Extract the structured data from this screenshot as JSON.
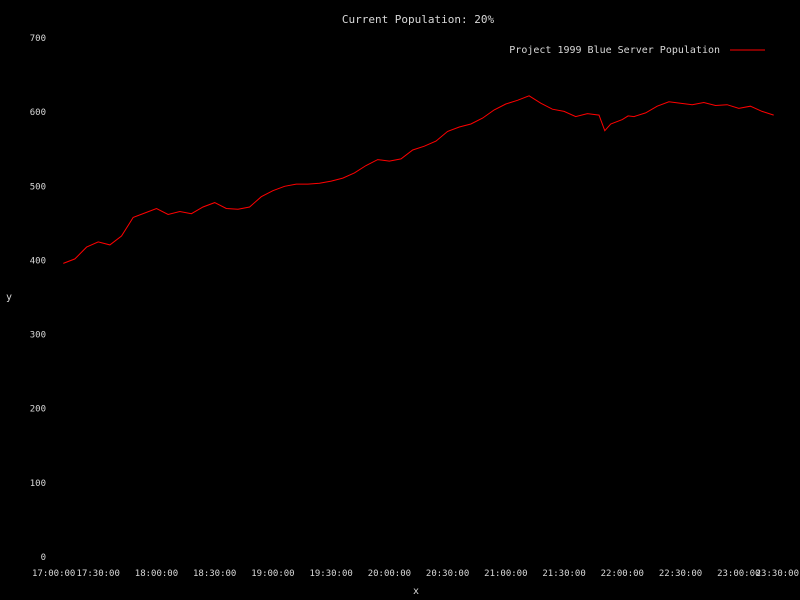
{
  "chart_data": {
    "type": "line",
    "title": "Current Population: 20%",
    "xlabel": "x",
    "ylabel": "y",
    "ylim": [
      0,
      700
    ],
    "xlim": [
      17.0,
      23.5
    ],
    "y_ticks": [
      "0",
      "100",
      "200",
      "300",
      "400",
      "500",
      "600",
      "700"
    ],
    "x_ticks": [
      "17:00:00",
      "17:30:00",
      "18:00:00",
      "18:30:00",
      "19:00:00",
      "19:30:00",
      "20:00:00",
      "20:30:00",
      "21:00:00",
      "21:30:00",
      "22:00:00",
      "22:30:00",
      "23:00:00",
      "23:30:00"
    ],
    "legend_position": "top-right",
    "colors": {
      "background": "#000000",
      "text": "#d8d8d8",
      "series": "#ff0000"
    },
    "series": [
      {
        "name": "Project 1999 Blue Server Population",
        "x": [
          17.2,
          17.3,
          17.4,
          17.5,
          17.6,
          17.7,
          17.8,
          17.9,
          18.0,
          18.1,
          18.2,
          18.3,
          18.4,
          18.5,
          18.6,
          18.7,
          18.8,
          18.9,
          19.0,
          19.1,
          19.2,
          19.3,
          19.4,
          19.5,
          19.6,
          19.7,
          19.8,
          19.9,
          20.0,
          20.1,
          20.2,
          20.3,
          20.4,
          20.5,
          20.6,
          20.7,
          20.8,
          20.9,
          21.0,
          21.1,
          21.2,
          21.3,
          21.4,
          21.5,
          21.6,
          21.7,
          21.8,
          21.85,
          21.9,
          22.0,
          22.05,
          22.1,
          22.2,
          22.3,
          22.4,
          22.5,
          22.6,
          22.7,
          22.8,
          22.9,
          23.0,
          23.1,
          23.2,
          23.3
        ],
        "y": [
          396,
          402,
          418,
          425,
          421,
          433,
          458,
          464,
          470,
          462,
          466,
          463,
          472,
          478,
          470,
          469,
          472,
          486,
          494,
          500,
          503,
          503,
          504,
          507,
          511,
          518,
          528,
          536,
          534,
          537,
          549,
          554,
          561,
          574,
          580,
          584,
          592,
          603,
          611,
          616,
          622,
          612,
          604,
          601,
          594,
          598,
          596,
          575,
          584,
          590,
          595,
          594,
          599,
          608,
          614,
          612,
          610,
          613,
          609,
          610,
          605,
          608,
          601,
          596
        ]
      }
    ]
  }
}
